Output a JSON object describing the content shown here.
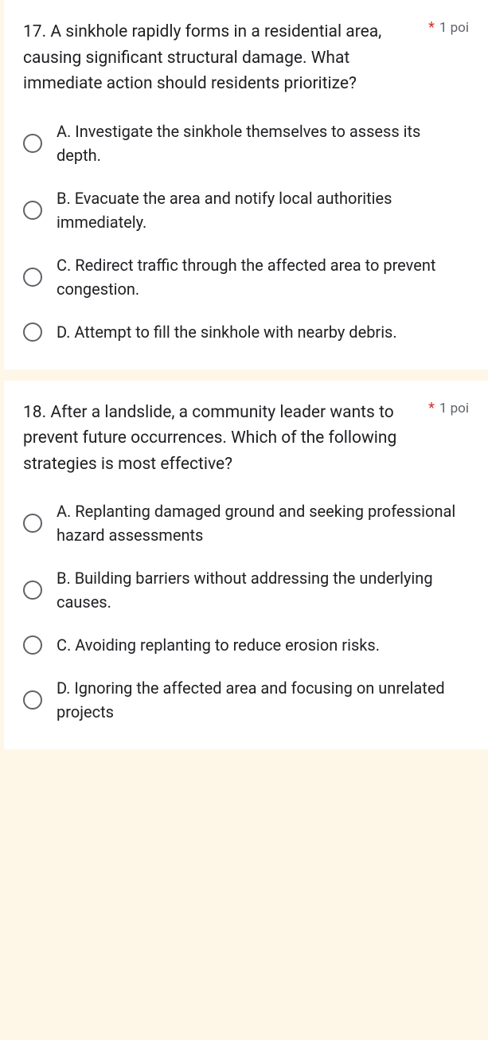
{
  "questions": [
    {
      "number": "17.",
      "text": "A sinkhole rapidly forms in a residential area, causing significant structural damage. What immediate action should residents prioritize?",
      "required": "*",
      "points": "1 poi",
      "options": [
        "A. Investigate the sinkhole themselves to assess its depth.",
        "B. Evacuate the area and notify local authorities immediately.",
        "C. Redirect traffic through the affected area to prevent congestion.",
        "D. Attempt to fill the sinkhole with nearby debris."
      ]
    },
    {
      "number": "18.",
      "text": "After a landslide, a community leader wants to prevent future occurrences. Which of the following strategies is most effective?",
      "required": "*",
      "points": "1 poi",
      "options": [
        "A. Replanting damaged ground and seeking professional hazard assessments",
        "B. Building barriers without addressing the underlying causes.",
        "C. Avoiding replanting to reduce erosion risks.",
        "D. Ignoring the affected area and focusing on unrelated projects"
      ]
    }
  ]
}
